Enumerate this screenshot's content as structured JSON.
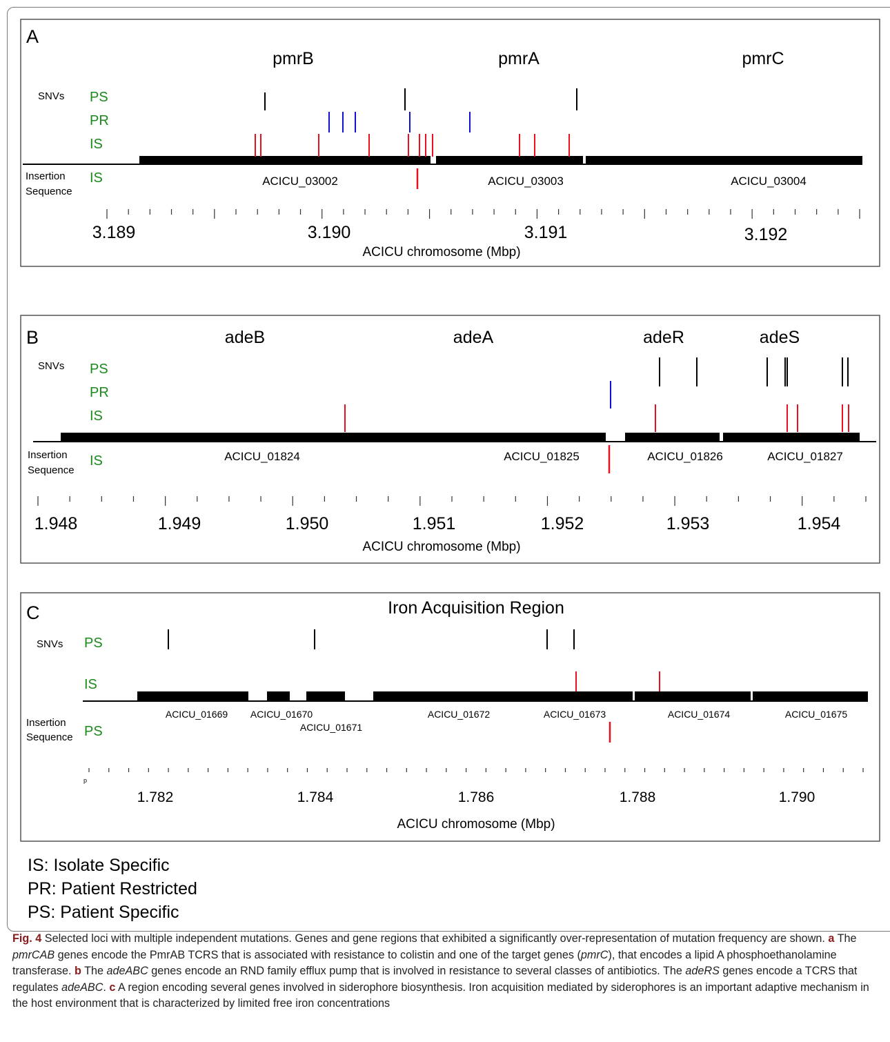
{
  "panels": [
    {
      "id": "A",
      "letter": "A",
      "title": "",
      "row_labels": {
        "snvs": "SNVs",
        "ps": "PS",
        "pr": "PR",
        "is": "IS",
        "insertion_1": "Insertion",
        "insertion_2": "Sequence",
        "insertion_track": "IS"
      },
      "gene_names": [
        "pmrB",
        "pmrA",
        "pmrC"
      ],
      "locus_tags": [
        "ACICU_03002",
        "ACICU_03003",
        "ACICU_03004"
      ],
      "tick_labels": [
        "3.189",
        "3.190",
        "3.191",
        "3.192"
      ],
      "xlabel": "ACICU chromosome (Mbp)",
      "marks": {
        "ps": [
          "black",
          "black",
          "black"
        ],
        "pr": [
          "blue",
          "blue",
          "blue",
          "blue",
          "blue"
        ],
        "is": [
          "red",
          "red",
          "red",
          "red",
          "red",
          "red",
          "red",
          "red",
          "red",
          "red",
          "red"
        ],
        "insertion": [
          "red"
        ]
      }
    },
    {
      "id": "B",
      "letter": "B",
      "title": "",
      "row_labels": {
        "snvs": "SNVs",
        "ps": "PS",
        "pr": "PR",
        "is": "IS",
        "insertion_1": "Insertion",
        "insertion_2": "Sequence",
        "insertion_track": "IS"
      },
      "gene_names": [
        "adeB",
        "adeA",
        "adeR",
        "adeS"
      ],
      "locus_tags": [
        "ACICU_01824",
        "ACICU_01825",
        "ACICU_01826",
        "ACICU_01827"
      ],
      "tick_labels": [
        "1.948",
        "1.949",
        "1.950",
        "1.951",
        "1.952",
        "1.953",
        "1.954"
      ],
      "xlabel": "ACICU chromosome (Mbp)",
      "marks": {
        "ps": [
          "black",
          "black",
          "black",
          "black",
          "black",
          "black",
          "black"
        ],
        "pr": [
          "blue"
        ],
        "is": [
          "red",
          "red",
          "red",
          "red",
          "red",
          "red"
        ],
        "insertion": [
          "red"
        ]
      }
    },
    {
      "id": "C",
      "letter": "C",
      "title": "Iron Acquisition Region",
      "row_labels": {
        "snvs": "SNVs",
        "ps": "PS",
        "is": "IS",
        "insertion_1": "Insertion",
        "insertion_2": "Sequence",
        "insertion_track": "PS"
      },
      "gene_names": [],
      "locus_tags": [
        "ACICU_01669",
        "ACICU_01670",
        "ACICU_01671",
        "ACICU_01672",
        "ACICU_01673",
        "ACICU_01674",
        "ACICU_01675"
      ],
      "tick_labels": [
        "1.782",
        "1.784",
        "1.786",
        "1.788",
        "1.790"
      ],
      "stray_mark": "p",
      "xlabel": "ACICU chromosome (Mbp)",
      "marks": {
        "ps": [
          "black",
          "black",
          "black",
          "black"
        ],
        "is": [
          "red",
          "red"
        ],
        "insertion": [
          "red"
        ]
      }
    }
  ],
  "legend": {
    "is": "IS: Isolate Specific",
    "pr": "PR: Patient Restricted",
    "ps": "PS: Patient Specific"
  },
  "caption": {
    "fig_label": "Fig. 4",
    "intro": " Selected loci with multiple independent mutations. Genes and gene regions that exhibited a significantly over-representation of mutation frequency are shown. ",
    "a_label": "a",
    "a_text_1": " The ",
    "a_gene": "pmrCAB",
    "a_text_2": " genes encode the PmrAB TCRS that is associated with resistance to colistin and one of the target genes (",
    "a_gene_2": "pmrC",
    "a_text_3": "), that encodes a lipid A phosphoethanolamine transferase. ",
    "b_label": "b",
    "b_text_1": " The ",
    "b_gene": "adeABC",
    "b_text_2": " genes encode an RND family efflux pump that is involved in resistance to several classes of antibiotics. The ",
    "b_gene_2": "adeRS",
    "b_text_3": " genes encode a TCRS that regulates ",
    "b_gene_3": "adeABC",
    "b_text_4": ". ",
    "c_label": "c",
    "c_text": " A region encoding several genes involved in siderophore biosynthesis. Iron acquisition mediated by siderophores is an important adaptive mechanism in the host environment that is characterized by limited free iron concentrations"
  },
  "colors": {
    "track_label": "#1a8a1a",
    "is_mark": "#e8101e",
    "pr_mark": "#1010d0",
    "ps_mark": "#000000",
    "gene_bar": "#000000",
    "panel_border": "#555555"
  }
}
